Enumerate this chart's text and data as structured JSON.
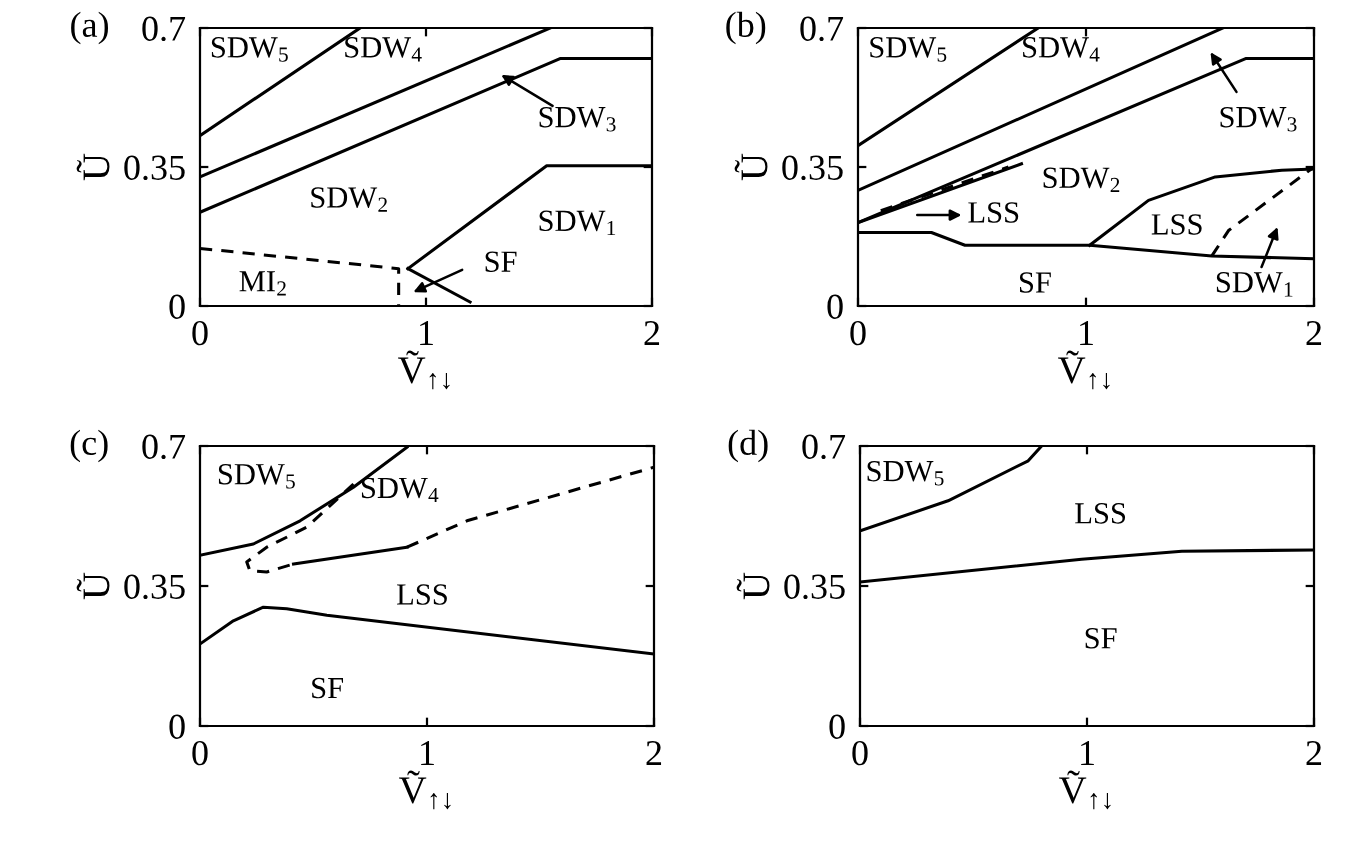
{
  "chart_data": [
    {
      "type": "line",
      "title": "(a)",
      "xlabel": "Ṽ$_{↑↓}$",
      "ylabel": "Ũ",
      "xlim": [
        0,
        2
      ],
      "ylim": [
        0,
        0.7
      ],
      "xticks": [
        0,
        1,
        2
      ],
      "yticks": [
        0,
        0.35,
        0.7
      ],
      "series": [
        {
          "color": "#000000",
          "line_style": "solid",
          "x": [
            0,
            0.708
          ],
          "values": [
            0.429,
            0.7
          ]
        },
        {
          "color": "#000000",
          "line_style": "solid",
          "x": [
            0,
            1.55
          ],
          "values": [
            0.325,
            0.7
          ]
        },
        {
          "color": "#000000",
          "line_style": "solid",
          "x": [
            0,
            1.593,
            2
          ],
          "values": [
            0.236,
            0.623,
            0.623
          ]
        },
        {
          "color": "#000000",
          "line_style": "solid",
          "x": [
            0.92,
            1.534,
            2
          ],
          "values": [
            0.094,
            0.353,
            0.353
          ]
        },
        {
          "color": "#000000",
          "line_style": "solid",
          "x": [
            0.92,
            1.195
          ],
          "values": [
            0.094,
            0.01
          ]
        },
        {
          "color": "#000000",
          "line_style": "dashed",
          "x": [
            0,
            0.879,
            0.879
          ],
          "values": [
            0.145,
            0.094,
            0
          ]
        }
      ],
      "annotations": [
        "SDW$_{5}$",
        "SDW$_{4}$",
        {
          "text": "SDW$_{3}$",
          "x": 1.333,
          "y": 0.582
        },
        "SDW$_{2}$",
        "SDW$_{1}$",
        "SF",
        "MI$_{2}$"
      ]
    },
    {
      "type": "line",
      "title": "(b)",
      "xlabel": "Ṽ$_{↑↓}$",
      "ylabel": "Ũ",
      "xlim": [
        0,
        2
      ],
      "ylim": [
        0,
        0.7
      ],
      "xticks": [
        0,
        1,
        2
      ],
      "yticks": [
        0,
        0.35,
        0.7
      ],
      "series": [
        {
          "color": "#000000",
          "line_style": "solid",
          "x": [
            0,
            0.79
          ],
          "values": [
            0.404,
            0.7
          ]
        },
        {
          "color": "#000000",
          "line_style": "solid",
          "x": [
            0,
            1.6
          ],
          "values": [
            0.291,
            0.7
          ]
        },
        {
          "color": "#000000",
          "line_style": "solid",
          "x": [
            0,
            1.7,
            2
          ],
          "values": [
            0.21,
            0.623,
            0.623
          ]
        },
        {
          "color": "#000000",
          "line_style": "solid",
          "x": [
            0,
            0.717
          ],
          "values": [
            0.21,
            0.358
          ]
        },
        {
          "color": "#000000",
          "line_style": "dashed",
          "x": [
            0.1,
            0.66
          ],
          "values": [
            0.24,
            0.35
          ]
        },
        {
          "color": "#000000",
          "line_style": "solid",
          "x": [
            0,
            0.322,
            0.469,
            1.016,
            1.552,
            2
          ],
          "values": [
            0.185,
            0.185,
            0.153,
            0.153,
            0.126,
            0.119
          ]
        },
        {
          "color": "#000000",
          "line_style": "solid",
          "x": [
            1.016,
            1.274,
            1.567,
            1.859,
            2
          ],
          "values": [
            0.153,
            0.266,
            0.325,
            0.342,
            0.345
          ]
        },
        {
          "color": "#000000",
          "line_style": "dashed",
          "x": [
            1.552,
            1.625,
            2
          ],
          "values": [
            0.126,
            0.19,
            0.35
          ]
        }
      ],
      "annotations": [
        "SDW$_{5}$",
        "SDW$_{4}$",
        "SDW$_{3}$",
        "SDW$_{2}$",
        "LSS",
        "LSS",
        "SDW$_{1}$",
        "SF"
      ]
    },
    {
      "type": "line",
      "title": "(c)",
      "xlabel": "Ṽ$_{↑↓}$",
      "ylabel": "Ũ",
      "xlim": [
        0,
        2
      ],
      "ylim": [
        0,
        0.7
      ],
      "xticks": [
        0,
        1,
        2
      ],
      "yticks": [
        0,
        0.35,
        0.7
      ],
      "series": [
        {
          "color": "#000000",
          "line_style": "solid",
          "x": [
            0,
            0.235,
            0.441,
            0.676,
            0.912
          ],
          "values": [
            0.427,
            0.455,
            0.513,
            0.597,
            0.697
          ]
        },
        {
          "color": "#000000",
          "line_style": "dashed",
          "x": [
            0.676,
            0.47,
            0.294,
            0.206,
            0.22,
            0.294,
            0.412
          ],
          "values": [
            0.605,
            0.497,
            0.447,
            0.41,
            0.388,
            0.385,
            0.405
          ]
        },
        {
          "color": "#000000",
          "line_style": "solid",
          "x": [
            0.412,
            0.912
          ],
          "values": [
            0.405,
            0.447
          ]
        },
        {
          "color": "#000000",
          "line_style": "dashed",
          "x": [
            0.912,
            1.176,
            2
          ],
          "values": [
            0.447,
            0.513,
            0.647
          ]
        },
        {
          "color": "#000000",
          "line_style": "solid",
          "x": [
            0,
            0.147,
            0.279,
            0.382,
            0.559,
            2
          ],
          "values": [
            0.205,
            0.263,
            0.297,
            0.293,
            0.277,
            0.18
          ]
        }
      ],
      "annotations": [
        "SDW$_{5}$",
        "SDW$_{4}$",
        "LSS",
        "SF"
      ]
    },
    {
      "type": "line",
      "title": "(d)",
      "xlabel": "Ṽ$_{↑↓}$",
      "ylabel": "Ũ",
      "xlim": [
        0,
        2
      ],
      "ylim": [
        0,
        0.7
      ],
      "xticks": [
        0,
        1,
        2
      ],
      "yticks": [
        0,
        0.35,
        0.7
      ],
      "series": [
        {
          "color": "#000000",
          "line_style": "solid",
          "x": [
            0,
            0.388,
            0.741,
            0.8
          ],
          "values": [
            0.488,
            0.563,
            0.663,
            0.7
          ]
        },
        {
          "color": "#000000",
          "line_style": "solid",
          "x": [
            0,
            0.976,
            1.418,
            2
          ],
          "values": [
            0.36,
            0.417,
            0.437,
            0.44
          ]
        }
      ],
      "annotations": [
        "SDW$_{5}$",
        "LSS",
        "SF"
      ]
    }
  ]
}
